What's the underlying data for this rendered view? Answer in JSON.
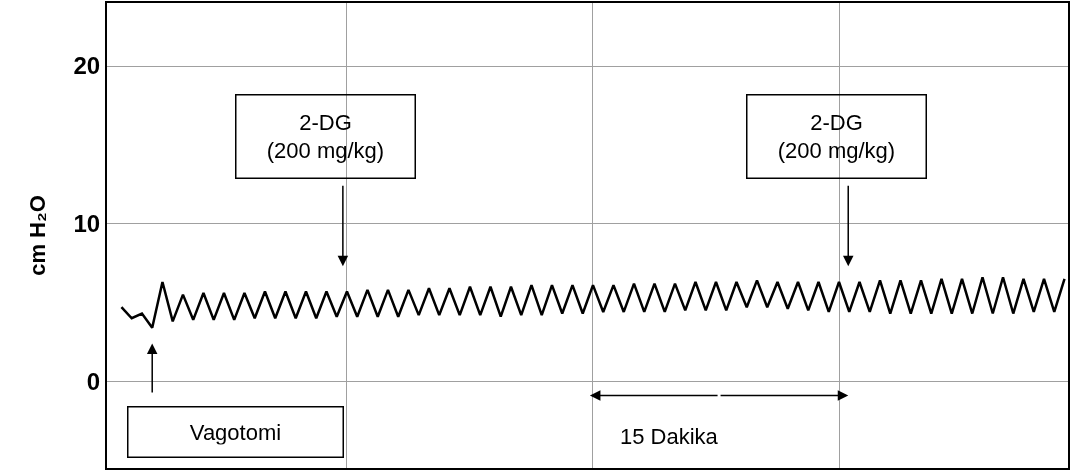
{
  "chart_data": {
    "type": "line",
    "ylabel": "cm H₂O",
    "categories": [
      null,
      null,
      null,
      null,
      null,
      null,
      null,
      null,
      null,
      null,
      null,
      null,
      null,
      null,
      null,
      null,
      null,
      null,
      null,
      null,
      null,
      null,
      null,
      null,
      null,
      null,
      null,
      null,
      null,
      null,
      null,
      null,
      null,
      null,
      null,
      null,
      null,
      null,
      null,
      null,
      null,
      null,
      null,
      null,
      null,
      null,
      null,
      null,
      null,
      null,
      null,
      null,
      null,
      null,
      null,
      null,
      null,
      null,
      null,
      null,
      null,
      null,
      null,
      null,
      null,
      null,
      null,
      null,
      null,
      null,
      null,
      null,
      null,
      null,
      null,
      null,
      null,
      null,
      null,
      null,
      null,
      null,
      null,
      null,
      null,
      null,
      null,
      null,
      null,
      null,
      null,
      null,
      null
    ],
    "series": [
      {
        "color": "#000000",
        "values": [
          4.7,
          4.0,
          4.3,
          3.4,
          6.3,
          3.8,
          5.5,
          3.9,
          5.6,
          3.9,
          5.6,
          3.9,
          5.6,
          4.0,
          5.7,
          4.0,
          5.7,
          4.0,
          5.7,
          4.0,
          5.7,
          4.1,
          5.7,
          4.1,
          5.8,
          4.1,
          5.8,
          4.1,
          5.8,
          4.2,
          5.9,
          4.2,
          5.9,
          4.2,
          6.0,
          4.2,
          6.0,
          4.1,
          6.0,
          4.2,
          6.1,
          4.2,
          6.1,
          4.3,
          6.1,
          4.3,
          6.1,
          4.4,
          6.1,
          4.4,
          6.2,
          4.4,
          6.2,
          4.4,
          6.2,
          4.5,
          6.3,
          4.5,
          6.3,
          4.5,
          6.3,
          4.7,
          6.4,
          4.7,
          6.3,
          4.6,
          6.3,
          4.5,
          6.3,
          4.4,
          6.3,
          4.4,
          6.3,
          4.4,
          6.4,
          4.3,
          6.4,
          4.3,
          6.4,
          4.3,
          6.5,
          4.3,
          6.5,
          4.3,
          6.6,
          4.3,
          6.6,
          4.3,
          6.5,
          4.4,
          6.5,
          4.4,
          6.5
        ]
      }
    ],
    "ylim": [
      -5.5,
      24
    ],
    "yticks": [
      0,
      10,
      20
    ],
    "tick_labels": "y",
    "grid": true,
    "line_style": "solid",
    "annotations": [
      "2-DG\n(200 mg/kg)",
      "2-DG\n(200 mg/kg)",
      "Vagotomi",
      "15 Dakika"
    ]
  }
}
